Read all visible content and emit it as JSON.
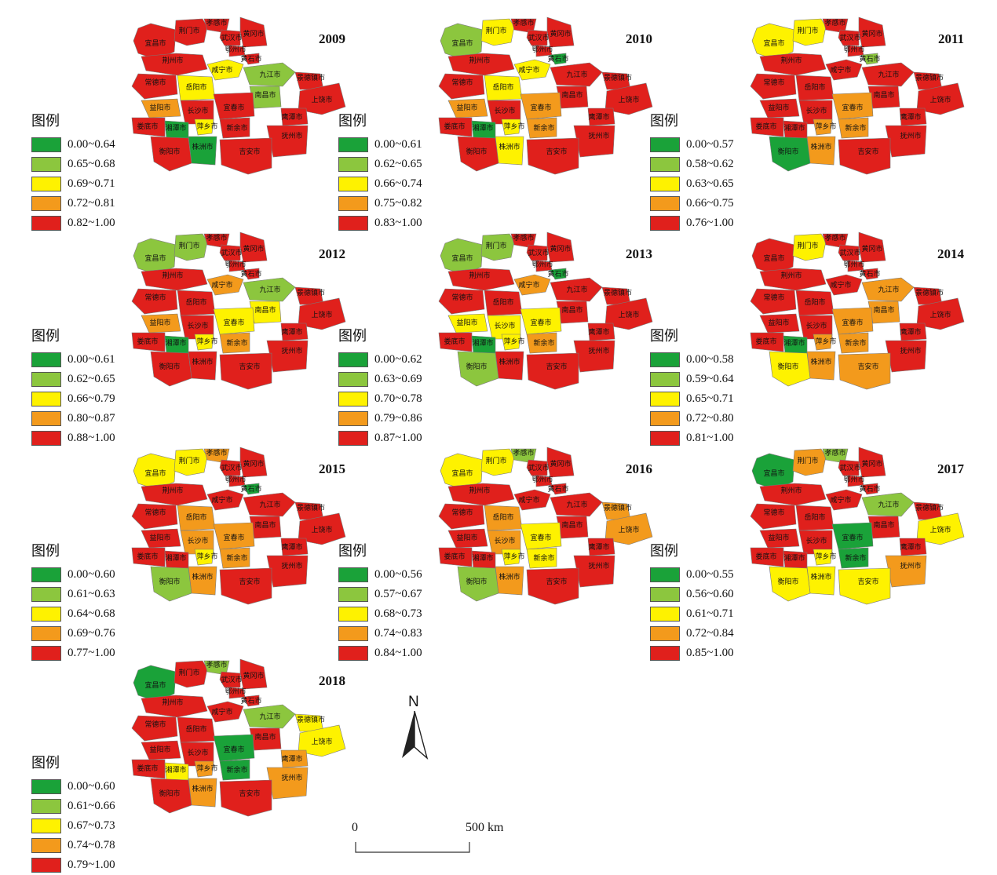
{
  "colors": {
    "c1": "#1aa239",
    "c2": "#8cc63e",
    "c3": "#fef200",
    "c4": "#f39a1c",
    "c5": "#e0201c"
  },
  "legend_title": "图例",
  "cities": {
    "yichang": "宜昌市",
    "jingmen": "荆门市",
    "xiaogan": "孝感市",
    "wuhan": "武汉市",
    "huanggang": "黄冈市",
    "ezhou": "鄂州市",
    "huangshi": "黄石市",
    "jingzhou": "荆州市",
    "xianning": "咸宁市",
    "jiujiang": "九江市",
    "jingdezhen": "景德镇市",
    "changde": "常德市",
    "yueyang": "岳阳市",
    "nanchang": "南昌市",
    "shangrao": "上饶市",
    "yiyang": "益阳市",
    "changsha": "长沙市",
    "yichun": "宜春市",
    "yingtan": "鹰潭市",
    "loudi": "娄底市",
    "xiangtan": "湘潭市",
    "pingxiang": "萍乡市",
    "xinyu": "新余市",
    "fuzhou": "抚州市",
    "zhuzhou": "株洲市",
    "hengyang": "衡阳市",
    "jian": "吉安市"
  },
  "panels": [
    {
      "year": "2009",
      "legend": [
        "0.00~0.64",
        "0.65~0.68",
        "0.69~0.71",
        "0.72~0.81",
        "0.82~1.00"
      ],
      "classes": {
        "yichang": 5,
        "jingmen": 5,
        "xiaogan": 5,
        "wuhan": 5,
        "huanggang": 5,
        "ezhou": 5,
        "huangshi": 5,
        "jingzhou": 5,
        "xianning": 3,
        "jiujiang": 2,
        "jingdezhen": 5,
        "changde": 5,
        "yueyang": 3,
        "nanchang": 2,
        "shangrao": 5,
        "yiyang": 4,
        "changsha": 5,
        "yichun": 5,
        "yingtan": 5,
        "loudi": 5,
        "xiangtan": 1,
        "pingxiang": 3,
        "xinyu": 5,
        "fuzhou": 5,
        "zhuzhou": 1,
        "hengyang": 5,
        "jian": 5
      }
    },
    {
      "year": "2010",
      "legend": [
        "0.00~0.61",
        "0.62~0.65",
        "0.66~0.74",
        "0.75~0.82",
        "0.83~1.00"
      ],
      "classes": {
        "yichang": 2,
        "jingmen": 3,
        "xiaogan": 5,
        "wuhan": 5,
        "huanggang": 5,
        "ezhou": 5,
        "huangshi": 1,
        "jingzhou": 5,
        "xianning": 3,
        "jiujiang": 5,
        "jingdezhen": 5,
        "changde": 5,
        "yueyang": 3,
        "nanchang": 5,
        "shangrao": 5,
        "yiyang": 4,
        "changsha": 5,
        "yichun": 4,
        "yingtan": 5,
        "loudi": 5,
        "xiangtan": 1,
        "pingxiang": 3,
        "xinyu": 4,
        "fuzhou": 5,
        "zhuzhou": 3,
        "hengyang": 5,
        "jian": 5
      }
    },
    {
      "year": "2011",
      "legend": [
        "0.00~0.57",
        "0.58~0.62",
        "0.63~0.65",
        "0.66~0.75",
        "0.76~1.00"
      ],
      "classes": {
        "yichang": 3,
        "jingmen": 3,
        "xiaogan": 5,
        "wuhan": 5,
        "huanggang": 5,
        "ezhou": 5,
        "huangshi": 2,
        "jingzhou": 5,
        "xianning": 5,
        "jiujiang": 5,
        "jingdezhen": 5,
        "changde": 5,
        "yueyang": 5,
        "nanchang": 5,
        "shangrao": 5,
        "yiyang": 5,
        "changsha": 5,
        "yichun": 4,
        "yingtan": 5,
        "loudi": 5,
        "xiangtan": 5,
        "pingxiang": 4,
        "xinyu": 4,
        "fuzhou": 5,
        "zhuzhou": 4,
        "hengyang": 1,
        "jian": 5
      }
    },
    {
      "year": "2012",
      "legend": [
        "0.00~0.61",
        "0.62~0.65",
        "0.66~0.79",
        "0.80~0.87",
        "0.88~1.00"
      ],
      "classes": {
        "yichang": 2,
        "jingmen": 2,
        "xiaogan": 5,
        "wuhan": 5,
        "huanggang": 5,
        "ezhou": 5,
        "huangshi": 5,
        "jingzhou": 5,
        "xianning": 4,
        "jiujiang": 2,
        "jingdezhen": 5,
        "changde": 5,
        "yueyang": 5,
        "nanchang": 3,
        "shangrao": 5,
        "yiyang": 4,
        "changsha": 5,
        "yichun": 3,
        "yingtan": 5,
        "loudi": 5,
        "xiangtan": 1,
        "pingxiang": 3,
        "xinyu": 4,
        "fuzhou": 5,
        "zhuzhou": 5,
        "hengyang": 5,
        "jian": 5
      }
    },
    {
      "year": "2013",
      "legend": [
        "0.00~0.62",
        "0.63~0.69",
        "0.70~0.78",
        "0.79~0.86",
        "0.87~1.00"
      ],
      "classes": {
        "yichang": 2,
        "jingmen": 2,
        "xiaogan": 5,
        "wuhan": 5,
        "huanggang": 5,
        "ezhou": 5,
        "huangshi": 1,
        "jingzhou": 5,
        "xianning": 4,
        "jiujiang": 5,
        "jingdezhen": 5,
        "changde": 5,
        "yueyang": 5,
        "nanchang": 5,
        "shangrao": 5,
        "yiyang": 3,
        "changsha": 3,
        "yichun": 3,
        "yingtan": 5,
        "loudi": 5,
        "xiangtan": 1,
        "pingxiang": 3,
        "xinyu": 4,
        "fuzhou": 5,
        "zhuzhou": 5,
        "hengyang": 2,
        "jian": 5
      }
    },
    {
      "year": "2014",
      "legend": [
        "0.00~0.58",
        "0.59~0.64",
        "0.65~0.71",
        "0.72~0.80",
        "0.81~1.00"
      ],
      "classes": {
        "yichang": 5,
        "jingmen": 3,
        "xiaogan": 5,
        "wuhan": 5,
        "huanggang": 5,
        "ezhou": 5,
        "huangshi": 5,
        "jingzhou": 5,
        "xianning": 5,
        "jiujiang": 4,
        "jingdezhen": 5,
        "changde": 5,
        "yueyang": 5,
        "nanchang": 4,
        "shangrao": 5,
        "yiyang": 5,
        "changsha": 5,
        "yichun": 4,
        "yingtan": 5,
        "loudi": 5,
        "xiangtan": 1,
        "pingxiang": 4,
        "xinyu": 4,
        "fuzhou": 5,
        "zhuzhou": 4,
        "hengyang": 3,
        "jian": 4
      }
    },
    {
      "year": "2015",
      "legend": [
        "0.00~0.60",
        "0.61~0.63",
        "0.64~0.68",
        "0.69~0.76",
        "0.77~1.00"
      ],
      "classes": {
        "yichang": 3,
        "jingmen": 3,
        "xiaogan": 4,
        "wuhan": 5,
        "huanggang": 5,
        "ezhou": 5,
        "huangshi": 1,
        "jingzhou": 5,
        "xianning": 5,
        "jiujiang": 5,
        "jingdezhen": 5,
        "changde": 5,
        "yueyang": 4,
        "nanchang": 5,
        "shangrao": 5,
        "yiyang": 5,
        "changsha": 4,
        "yichun": 4,
        "yingtan": 5,
        "loudi": 5,
        "xiangtan": 5,
        "pingxiang": 3,
        "xinyu": 4,
        "fuzhou": 5,
        "zhuzhou": 4,
        "hengyang": 2,
        "jian": 5
      }
    },
    {
      "year": "2016",
      "legend": [
        "0.00~0.56",
        "0.57~0.67",
        "0.68~0.73",
        "0.74~0.83",
        "0.84~1.00"
      ],
      "classes": {
        "yichang": 3,
        "jingmen": 3,
        "xiaogan": 2,
        "wuhan": 5,
        "huanggang": 5,
        "ezhou": 5,
        "huangshi": 5,
        "jingzhou": 5,
        "xianning": 5,
        "jiujiang": 5,
        "jingdezhen": 4,
        "changde": 5,
        "yueyang": 4,
        "nanchang": 5,
        "shangrao": 4,
        "yiyang": 5,
        "changsha": 4,
        "yichun": 3,
        "yingtan": 5,
        "loudi": 5,
        "xiangtan": 5,
        "pingxiang": 3,
        "xinyu": 3,
        "fuzhou": 5,
        "zhuzhou": 4,
        "hengyang": 2,
        "jian": 5
      }
    },
    {
      "year": "2017",
      "legend": [
        "0.00~0.55",
        "0.56~0.60",
        "0.61~0.71",
        "0.72~0.84",
        "0.85~1.00"
      ],
      "classes": {
        "yichang": 1,
        "jingmen": 4,
        "xiaogan": 2,
        "wuhan": 5,
        "huanggang": 5,
        "ezhou": 5,
        "huangshi": 5,
        "jingzhou": 5,
        "xianning": 5,
        "jiujiang": 2,
        "jingdezhen": 5,
        "changde": 5,
        "yueyang": 5,
        "nanchang": 5,
        "shangrao": 3,
        "yiyang": 5,
        "changsha": 5,
        "yichun": 1,
        "yingtan": 5,
        "loudi": 5,
        "xiangtan": 5,
        "pingxiang": 3,
        "xinyu": 1,
        "fuzhou": 4,
        "zhuzhou": 3,
        "hengyang": 3,
        "jian": 3
      }
    },
    {
      "year": "2018",
      "legend": [
        "0.00~0.60",
        "0.61~0.66",
        "0.67~0.73",
        "0.74~0.78",
        "0.79~1.00"
      ],
      "classes": {
        "yichang": 1,
        "jingmen": 5,
        "xiaogan": 2,
        "wuhan": 5,
        "huanggang": 5,
        "ezhou": 5,
        "huangshi": 5,
        "jingzhou": 5,
        "xianning": 5,
        "jiujiang": 2,
        "jingdezhen": 3,
        "changde": 5,
        "yueyang": 5,
        "nanchang": 5,
        "shangrao": 3,
        "yiyang": 5,
        "changsha": 5,
        "yichun": 1,
        "yingtan": 4,
        "loudi": 5,
        "xiangtan": 3,
        "pingxiang": 4,
        "xinyu": 1,
        "fuzhou": 4,
        "zhuzhou": 4,
        "hengyang": 5,
        "jian": 5
      }
    }
  ],
  "north_arrow": "N",
  "scale": {
    "start": "0",
    "end": "500 km"
  }
}
